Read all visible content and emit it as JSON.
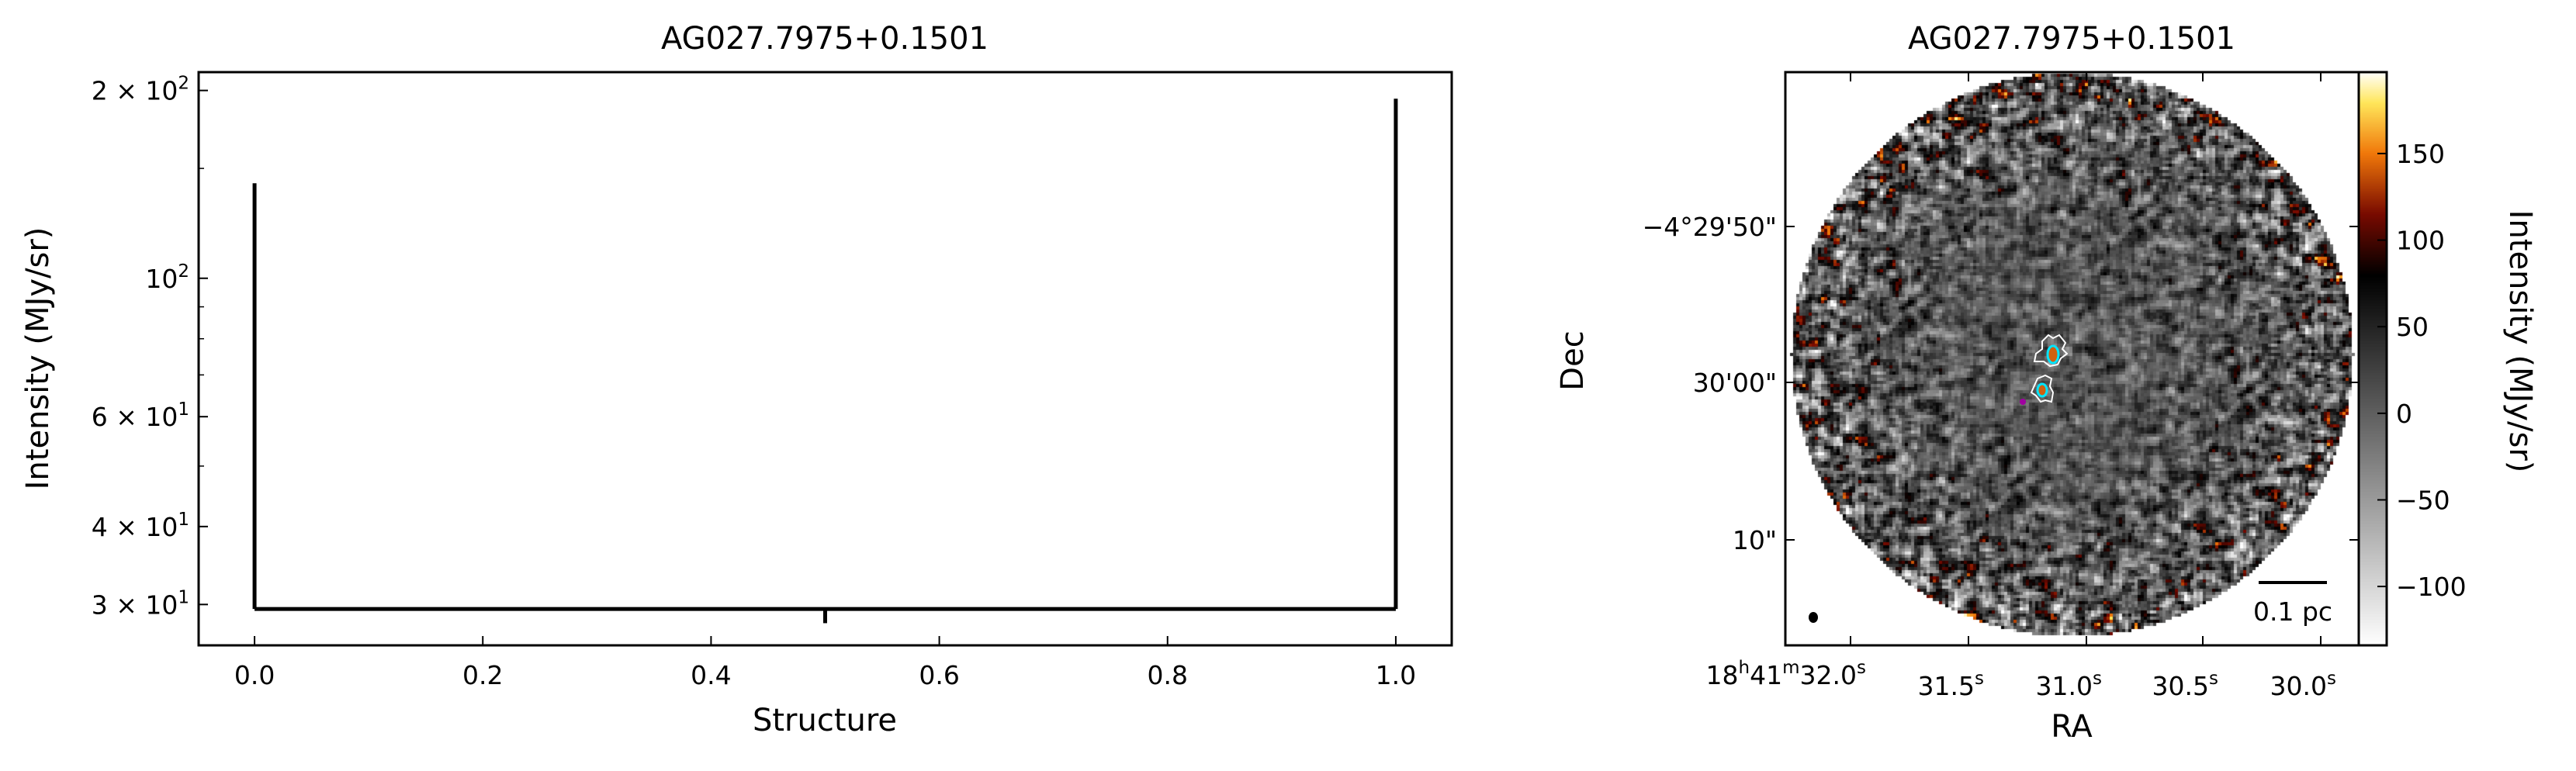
{
  "chart_data": [
    {
      "type": "dendrogram",
      "title": "AG027.7975+0.1501",
      "xlabel": "Structure",
      "ylabel": "Intensity (MJy/sr)",
      "xlim": [
        -0.049,
        1.049
      ],
      "ylim": [
        25.8,
        214
      ],
      "yscale": "log",
      "xticks": [
        0.0,
        0.2,
        0.4,
        0.6,
        0.8,
        1.0
      ],
      "xtick_labels": [
        "0.0",
        "0.2",
        "0.4",
        "0.6",
        "0.8",
        "1.0"
      ],
      "yticks": [
        200,
        100,
        60,
        40,
        30
      ],
      "ytick_labels": [
        {
          "base": "2 × 10",
          "exp": "2"
        },
        {
          "base": "10",
          "exp": "2"
        },
        {
          "base": "6 × 10",
          "exp": "1"
        },
        {
          "base": "4 × 10",
          "exp": "1"
        },
        {
          "base": "3 × 10",
          "exp": "1"
        }
      ],
      "segments": [
        {
          "x": [
            0.0,
            0.0
          ],
          "y": [
            29.5,
            142
          ]
        },
        {
          "x": [
            1.0,
            1.0
          ],
          "y": [
            29.5,
            194
          ]
        },
        {
          "x": [
            0.0,
            1.0
          ],
          "y": [
            29.5,
            29.5
          ]
        },
        {
          "x": [
            0.5,
            0.5
          ],
          "y": [
            28.0,
            29.5
          ]
        }
      ],
      "grid": false
    },
    {
      "type": "heatmap",
      "title": "AG027.7975+0.1501",
      "xlabel": "RA",
      "ylabel": "Dec",
      "xtick_labels": [
        {
          "main": "18",
          "h": "h",
          "mid": "41",
          "m": "m",
          "sec": "32.0",
          "s": "s"
        },
        {
          "sec": "31.5",
          "s": "s"
        },
        {
          "sec": "31.0",
          "s": "s"
        },
        {
          "sec": "30.5",
          "s": "s"
        },
        {
          "sec": "30.0",
          "s": "s"
        }
      ],
      "ytick_labels": [
        "−4°29'50\"",
        "30'00\"",
        "10\""
      ],
      "colorbar": {
        "label": "Intensity (MJy/sr)",
        "range": [
          -134,
          197
        ],
        "ticks": [
          150,
          100,
          50,
          0,
          -50,
          -100
        ],
        "tick_labels": [
          "150",
          "100",
          "50",
          "0",
          "−50",
          "−100"
        ],
        "colormap": "gray-to-afmhot"
      },
      "scalebar_label": "0.1 pc",
      "contour_colors": [
        "#ffffff",
        "#00e5ff",
        "#a000a0"
      ]
    }
  ]
}
